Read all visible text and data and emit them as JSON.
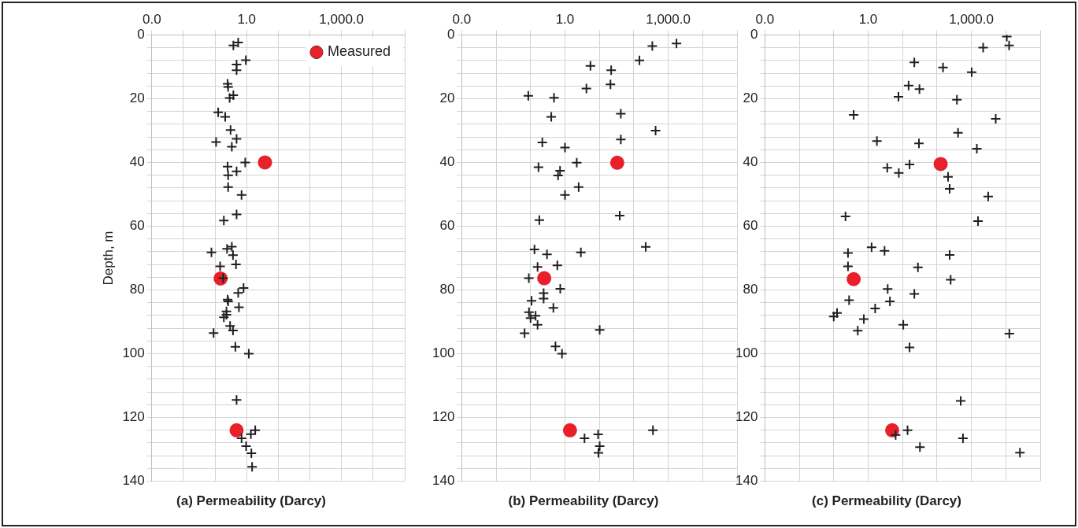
{
  "chart_data": [
    {
      "type": "scatter",
      "xlabel": "(a) Permeability (Darcy)",
      "ylabel": "Depth, m",
      "log": "x",
      "grid": true,
      "legend": "top right",
      "xlim": [
        0.001,
        100000
      ],
      "xticks": [
        {
          "value": 0.001,
          "label": "0.0"
        },
        {
          "value": 0.01,
          "label": null
        },
        {
          "value": 0.1,
          "label": null
        },
        {
          "value": 1,
          "label": "1.0"
        },
        {
          "value": 10,
          "label": null
        },
        {
          "value": 100,
          "label": null
        },
        {
          "value": 1000,
          "label": "1,000.0"
        },
        {
          "value": 10000,
          "label": null
        },
        {
          "value": 100000,
          "label": null
        }
      ],
      "ylim": [
        140,
        0
      ],
      "yticks": [
        0,
        {
          "value": 4,
          "label": null
        },
        {
          "value": 8,
          "label": null
        },
        {
          "value": 12,
          "label": null
        },
        {
          "value": 16,
          "label": null
        },
        20,
        {
          "value": 24,
          "label": null
        },
        {
          "value": 28,
          "label": null
        },
        {
          "value": 32,
          "label": null
        },
        {
          "value": 36,
          "label": null
        },
        40,
        {
          "value": 44,
          "label": null
        },
        {
          "value": 48,
          "label": null
        },
        {
          "value": 52,
          "label": null
        },
        {
          "value": 56,
          "label": null
        },
        60,
        {
          "value": 64,
          "label": null
        },
        {
          "value": 68,
          "label": null
        },
        {
          "value": 72,
          "label": null
        },
        {
          "value": 76,
          "label": null
        },
        80,
        {
          "value": 84,
          "label": null
        },
        {
          "value": 88,
          "label": null
        },
        {
          "value": 92,
          "label": null
        },
        {
          "value": 96,
          "label": null
        },
        100,
        {
          "value": 104,
          "label": null
        },
        {
          "value": 108,
          "label": null
        },
        {
          "value": 112,
          "label": null
        },
        {
          "value": 116,
          "label": null
        },
        120,
        {
          "value": 124,
          "label": null
        },
        {
          "value": 128,
          "label": null
        },
        {
          "value": 132,
          "label": null
        },
        {
          "value": 136,
          "label": null
        },
        140
      ],
      "series": [
        {
          "name": "Measured",
          "color": "#e8202a",
          "marker": "circle",
          "x": [
            3.8,
            0.15,
            0.48
          ],
          "values": [
            40,
            76.4,
            124
          ]
        },
        {
          "color": "#231f20",
          "marker": "cross",
          "x": [
            0.54,
            0.38,
            0.94,
            0.48,
            0.48,
            0.25,
            0.26,
            0.38,
            0.29,
            0.126,
            0.21,
            0.31,
            0.48,
            0.108,
            0.34,
            0.9,
            0.25,
            0.48,
            0.26,
            0.26,
            0.69,
            0.48,
            0.19,
            0.34,
            0.24,
            0.077,
            0.37,
            0.46,
            0.145,
            0.18,
            0.8,
            0.54,
            0.25,
            0.26,
            0.57,
            0.23,
            0.23,
            0.19,
            0.3,
            0.37,
            0.09,
            0.44,
            1.17,
            0.48,
            1.87,
            1.36,
            0.69,
            0.96,
            1.41,
            1.49
          ],
          "values": [
            2.4,
            3.3,
            7.9,
            9.3,
            11.1,
            15.3,
            16.3,
            18.9,
            19.8,
            24.3,
            25.7,
            29.8,
            32.6,
            33.6,
            35.1,
            40,
            41.3,
            42.8,
            44,
            47.7,
            50.2,
            56.3,
            58.2,
            66.4,
            67.1,
            68.2,
            69.1,
            72,
            72.6,
            76.3,
            79.4,
            80.9,
            83,
            83.6,
            85.4,
            86.7,
            87.8,
            88.6,
            91.3,
            92.7,
            93.5,
            97.8,
            100,
            114.5,
            124,
            125.2,
            126.5,
            129,
            131.2,
            135.5
          ]
        }
      ]
    },
    {
      "type": "scatter",
      "xlabel": "(b) Permeability (Darcy)",
      "log": "x",
      "grid": true,
      "xlim": [
        0.001,
        100000
      ],
      "xticks": [
        {
          "value": 0.001,
          "label": "0.0"
        },
        {
          "value": 0.01,
          "label": null
        },
        {
          "value": 0.1,
          "label": null
        },
        {
          "value": 1,
          "label": "1.0"
        },
        {
          "value": 10,
          "label": null
        },
        {
          "value": 100,
          "label": null
        },
        {
          "value": 1000,
          "label": "1,000.0"
        },
        {
          "value": 10000,
          "label": null
        },
        {
          "value": 100000,
          "label": null
        }
      ],
      "ylim": [
        140,
        0
      ],
      "yticks": [
        0,
        {
          "value": 4,
          "label": null
        },
        {
          "value": 8,
          "label": null
        },
        {
          "value": 12,
          "label": null
        },
        {
          "value": 16,
          "label": null
        },
        20,
        {
          "value": 24,
          "label": null
        },
        {
          "value": 28,
          "label": null
        },
        {
          "value": 32,
          "label": null
        },
        {
          "value": 36,
          "label": null
        },
        40,
        {
          "value": 44,
          "label": null
        },
        {
          "value": 48,
          "label": null
        },
        {
          "value": 52,
          "label": null
        },
        {
          "value": 56,
          "label": null
        },
        60,
        {
          "value": 64,
          "label": null
        },
        {
          "value": 68,
          "label": null
        },
        {
          "value": 72,
          "label": null
        },
        {
          "value": 76,
          "label": null
        },
        80,
        {
          "value": 84,
          "label": null
        },
        {
          "value": 88,
          "label": null
        },
        {
          "value": 92,
          "label": null
        },
        {
          "value": 96,
          "label": null
        },
        100,
        {
          "value": 104,
          "label": null
        },
        {
          "value": 108,
          "label": null
        },
        {
          "value": 112,
          "label": null
        },
        {
          "value": 116,
          "label": null
        },
        120,
        {
          "value": 124,
          "label": null
        },
        {
          "value": 128,
          "label": null
        },
        {
          "value": 132,
          "label": null
        },
        {
          "value": 136,
          "label": null
        },
        140
      ],
      "series": [
        {
          "color": "#e8202a",
          "marker": "circle",
          "x": [
            33,
            0.25,
            1.4
          ],
          "values": [
            40.1,
            76.3,
            124
          ]
        },
        {
          "color": "#231f20",
          "marker": "cross",
          "x": [
            1740,
            345,
            146,
            5.5,
            22,
            21,
            4.2,
            0.086,
            0.48,
            0.4,
            42,
            430,
            42,
            0.22,
            1,
            2.2,
            0.17,
            0.72,
            0.63,
            2.5,
            1,
            39,
            0.18,
            0.13,
            0.3,
            2.9,
            222,
            0.6,
            0.16,
            0.089,
            0.73,
            0.24,
            0.24,
            0.107,
            0.46,
            0.09,
            0.14,
            0.1,
            0.16,
            0.067,
            10.2,
            0.53,
            0.82,
            360,
            9.2,
            3.7,
            10.2,
            9.4
          ],
          "values": [
            2.7,
            3.5,
            8,
            9.7,
            11.1,
            15.5,
            16.8,
            19.1,
            19.7,
            25.7,
            24.7,
            30,
            32.8,
            33.7,
            35.3,
            40.1,
            41.5,
            42.6,
            44.1,
            47.7,
            50.2,
            56.7,
            58.1,
            67.3,
            68.8,
            68.2,
            66.5,
            72.3,
            72.8,
            76.3,
            79.6,
            81,
            82.7,
            83.4,
            85.6,
            87,
            88.1,
            88.8,
            90.9,
            93.6,
            92.5,
            97.7,
            100,
            124,
            125.3,
            126.5,
            129,
            131.1
          ]
        }
      ]
    },
    {
      "type": "scatter",
      "xlabel": "(c) Permeability (Darcy)",
      "log": "x",
      "grid": true,
      "xlim": [
        0.001,
        100000
      ],
      "xticks": [
        {
          "value": 0.001,
          "label": "0.0"
        },
        {
          "value": 0.01,
          "label": null
        },
        {
          "value": 0.1,
          "label": null
        },
        {
          "value": 1,
          "label": "1.0"
        },
        {
          "value": 10,
          "label": null
        },
        {
          "value": 100,
          "label": null
        },
        {
          "value": 1000,
          "label": "1,000.0"
        },
        {
          "value": 10000,
          "label": null
        },
        {
          "value": 100000,
          "label": null
        }
      ],
      "ylim": [
        140,
        0
      ],
      "yticks": [
        0,
        {
          "value": 4,
          "label": null
        },
        {
          "value": 8,
          "label": null
        },
        {
          "value": 12,
          "label": null
        },
        {
          "value": 16,
          "label": null
        },
        20,
        {
          "value": 24,
          "label": null
        },
        {
          "value": 28,
          "label": null
        },
        {
          "value": 32,
          "label": null
        },
        {
          "value": 36,
          "label": null
        },
        40,
        {
          "value": 44,
          "label": null
        },
        {
          "value": 48,
          "label": null
        },
        {
          "value": 52,
          "label": null
        },
        {
          "value": 56,
          "label": null
        },
        60,
        {
          "value": 64,
          "label": null
        },
        {
          "value": 68,
          "label": null
        },
        {
          "value": 72,
          "label": null
        },
        {
          "value": 76,
          "label": null
        },
        80,
        {
          "value": 84,
          "label": null
        },
        {
          "value": 88,
          "label": null
        },
        {
          "value": 92,
          "label": null
        },
        {
          "value": 96,
          "label": null
        },
        100,
        {
          "value": 104,
          "label": null
        },
        {
          "value": 108,
          "label": null
        },
        {
          "value": 112,
          "label": null
        },
        {
          "value": 116,
          "label": null
        },
        120,
        {
          "value": 124,
          "label": null
        },
        {
          "value": 128,
          "label": null
        },
        {
          "value": 132,
          "label": null
        },
        {
          "value": 136,
          "label": null
        },
        140
      ],
      "series": [
        {
          "color": "#e8202a",
          "marker": "circle",
          "x": [
            128,
            0.38,
            5
          ],
          "values": [
            40.5,
            76.6,
            124
          ]
        },
        {
          "color": "#231f20",
          "marker": "cross",
          "x": [
            10700,
            12500,
            2200,
            22,
            150,
            1020,
            15,
            31,
            7.6,
            380,
            0.38,
            5100,
            1.8,
            30,
            410,
            1440,
            16,
            3.6,
            7.8,
            210,
            234,
            3080,
            0.22,
            1560,
            1.26,
            3,
            0.26,
            234,
            0.26,
            28,
            250,
            3.7,
            22,
            0.28,
            4.3,
            1.6,
            0.125,
            0.1,
            0.75,
            0.5,
            10.5,
            16,
            12700,
            490,
            14,
            6.3,
            570,
            32,
            25700
          ],
          "values": [
            0.5,
            3.3,
            4,
            8.6,
            10.2,
            11.7,
            15.9,
            17,
            19.4,
            20.3,
            25.1,
            26.3,
            33.3,
            34,
            30.7,
            35.7,
            40.6,
            41.7,
            43.3,
            44.5,
            48.3,
            50.7,
            56.9,
            58.4,
            66.6,
            67.7,
            68.4,
            69,
            72.6,
            72.9,
            76.8,
            79.7,
            81.2,
            83.2,
            83.6,
            85.8,
            87.2,
            88.3,
            89.1,
            92.8,
            90.9,
            98,
            93.7,
            114.8,
            124,
            125.5,
            126.5,
            129.3,
            131
          ]
        }
      ]
    }
  ]
}
